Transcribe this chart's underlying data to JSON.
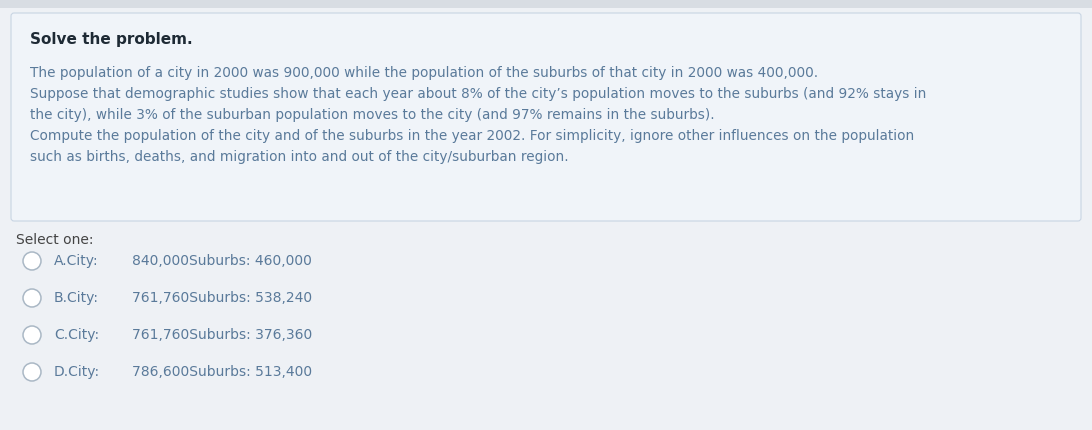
{
  "title": "Solve the problem.",
  "background_color": "#eef1f5",
  "box_bg_color": "#edf2f8",
  "box_border_color": "#c8d5e3",
  "text_color": "#5a7a9a",
  "title_color": "#1e2a35",
  "select_label_color": "#444444",
  "option_letter_color": "#5a7a9a",
  "option_value_color": "#5a7a9a",
  "circle_edge_color": "#aab8c5",
  "paragraph1": "The population of a city in 2000 was 900,000 while the population of the suburbs of that city in 2000 was 400,000.",
  "paragraph2": "Suppose that demographic studies show that each year about 8% of the city’s population moves to the suburbs (and 92% stays in",
  "paragraph2b": "the city), while 3% of the suburban population moves to the city (and 97% remains in the suburbs).",
  "paragraph3": "Compute the population of the city and of the suburbs in the year 2002. For simplicity, ignore other influences on the population",
  "paragraph3b": "such as births, deaths, and migration into and out of the city/suburban region.",
  "select_one": "Select one:",
  "options": [
    {
      "letter": "A.City:",
      "value": "840,000Suburbs: 460,000"
    },
    {
      "letter": "B.City:",
      "value": "761,760Suburbs: 538,240"
    },
    {
      "letter": "C.City:",
      "value": "761,760Suburbs: 376,360"
    },
    {
      "letter": "D.City:",
      "value": "786,600Suburbs: 513,400"
    }
  ],
  "fig_width": 10.92,
  "fig_height": 4.3,
  "dpi": 100
}
